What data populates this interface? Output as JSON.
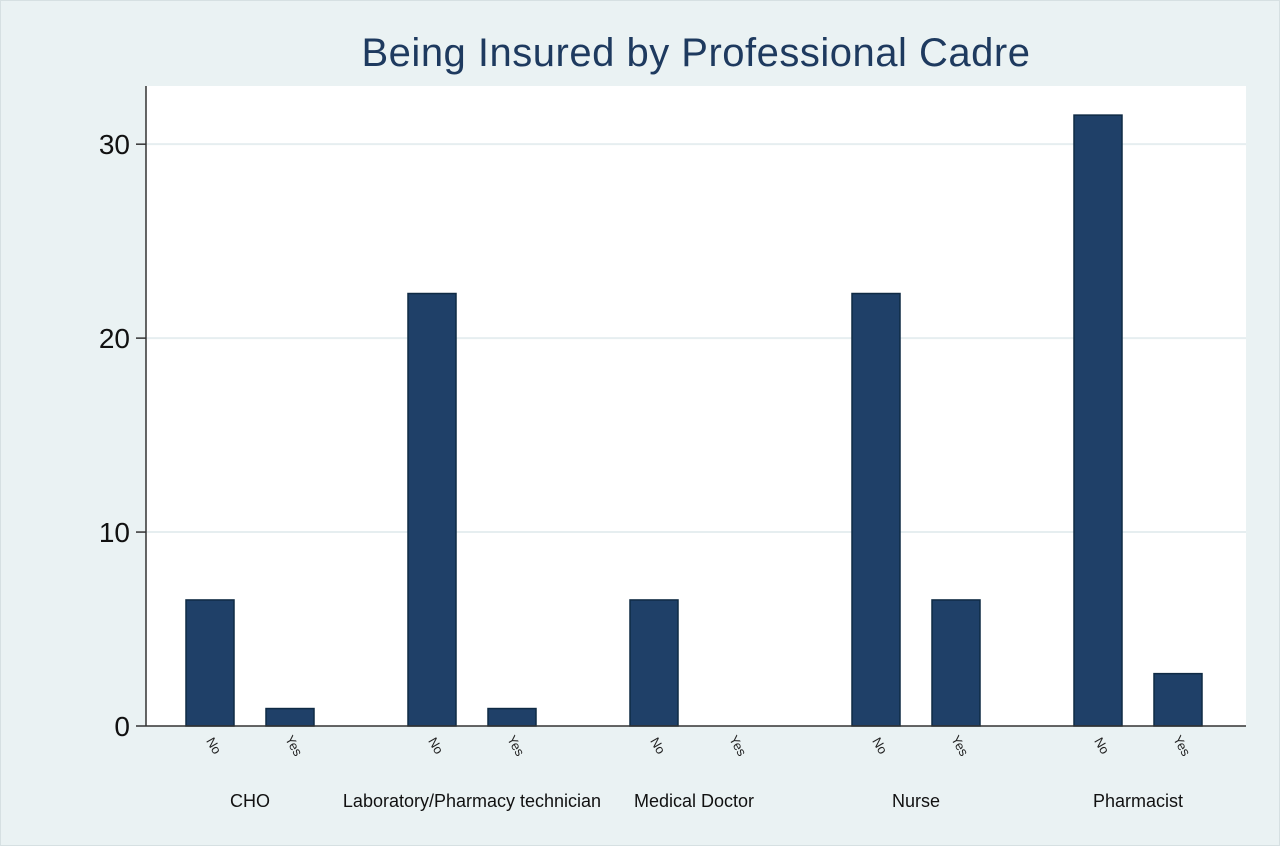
{
  "chart_data": {
    "type": "bar",
    "title": "Being Insured by Professional Cadre",
    "xlabel": "",
    "ylabel": "",
    "ylim": [
      0,
      33
    ],
    "yticks": [
      0,
      10,
      20,
      30
    ],
    "grid": true,
    "bar_color": "#1f4068",
    "groups": [
      {
        "name": "CHO",
        "bars": [
          {
            "label": "No",
            "value": 6.5
          },
          {
            "label": "Yes",
            "value": 0.9
          }
        ]
      },
      {
        "name": "Laboratory/Pharmacy technician",
        "bars": [
          {
            "label": "No",
            "value": 22.3
          },
          {
            "label": "Yes",
            "value": 0.9
          }
        ]
      },
      {
        "name": "Medical Doctor",
        "bars": [
          {
            "label": "No",
            "value": 6.5
          },
          {
            "label": "Yes",
            "value": 0
          }
        ]
      },
      {
        "name": "Nurse",
        "bars": [
          {
            "label": "No",
            "value": 22.3
          },
          {
            "label": "Yes",
            "value": 6.5
          }
        ]
      },
      {
        "name": "Pharmacist",
        "bars": [
          {
            "label": "No",
            "value": 31.5
          },
          {
            "label": "Yes",
            "value": 2.7
          }
        ]
      }
    ]
  }
}
